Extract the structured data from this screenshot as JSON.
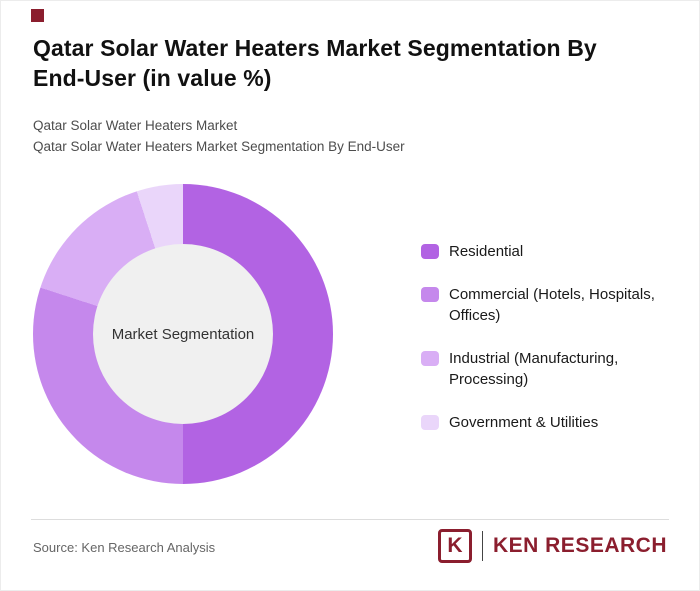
{
  "page": {
    "title": "Qatar Solar Water Heaters Market Segmentation By End-User (in value %)",
    "subtitle1": "Qatar Solar Water Heaters Market",
    "subtitle2": "Qatar Solar Water Heaters Market Segmentation By End-User",
    "source": "Source: Ken Research Analysis",
    "brand": {
      "mark": "K",
      "name": "KEN RESEARCH",
      "color": "#8b1e2e"
    }
  },
  "chart_data": {
    "type": "pie",
    "donut": true,
    "title": "Qatar Solar Water Heaters Market Segmentation By End-User (in value %)",
    "center_label": "Market Segmentation",
    "center_bg": "#f0f0f0",
    "legend_position": "right",
    "start_angle_deg": 0,
    "segments": [
      {
        "label": "Residential",
        "value": 50,
        "color": "#b263e3"
      },
      {
        "label": "Commercial (Hotels, Hospitals, Offices)",
        "value": 30,
        "color": "#c588ec"
      },
      {
        "label": "Industrial (Manufacturing, Processing)",
        "value": 15,
        "color": "#d9aef5"
      },
      {
        "label": "Government & Utilities",
        "value": 5,
        "color": "#ead6fa"
      }
    ]
  }
}
